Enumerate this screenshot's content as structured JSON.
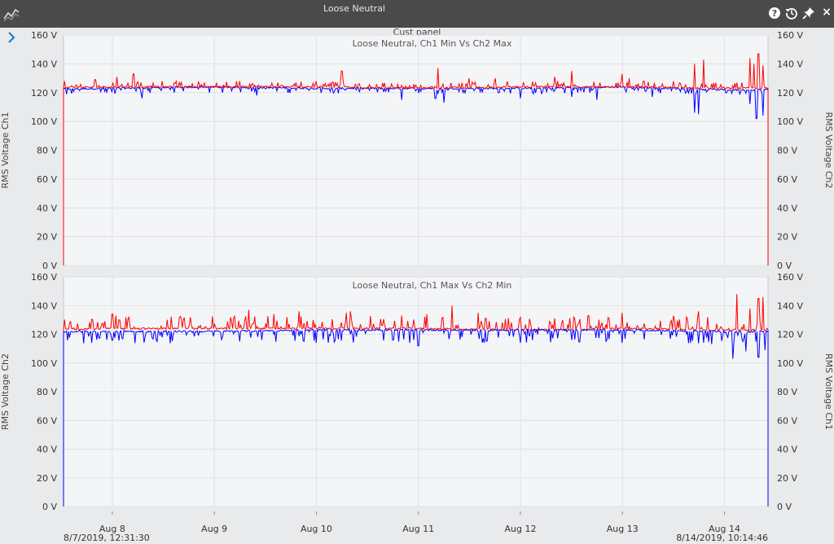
{
  "window": {
    "title": "Loose Neutral"
  },
  "panel": {
    "title": "Cust panel"
  },
  "colors": {
    "ch1": "#0000ff",
    "ch2": "#ff0000",
    "plot_bg": "#f4f5f7",
    "titlebar": "#4a4a4a"
  },
  "toolbar": {
    "icons": [
      "help-icon",
      "history-icon",
      "pin-icon",
      "close-icon"
    ],
    "close_label": "×"
  },
  "time_axis": {
    "start_label": "8/7/2019, 12:31:30",
    "end_label": "8/14/2019, 10:14:46",
    "start": "2019-08-07T12:31:30",
    "end": "2019-08-14T10:14:46",
    "ticks": [
      "Aug 8",
      "Aug 9",
      "Aug 10",
      "Aug 11",
      "Aug 12",
      "Aug 13",
      "Aug 14"
    ]
  },
  "chart_data": [
    {
      "type": "line",
      "title": "Loose Neutral, Ch1 Min Vs Ch2 Max",
      "ylabel_left": "RMS Voltage Ch1",
      "ylabel_right": "RMS Voltage Ch2",
      "ylim": [
        0,
        160
      ],
      "y_ticks": [
        "0 V",
        "20 V",
        "40 V",
        "60 V",
        "80 V",
        "100 V",
        "120 V",
        "140 V",
        "160 V"
      ],
      "grid": true,
      "x": [
        "2019-08-07",
        "2019-08-08",
        "2019-08-09",
        "2019-08-10",
        "2019-08-11",
        "2019-08-12",
        "2019-08-13",
        "2019-08-14"
      ],
      "series": [
        {
          "color": "#0000ff",
          "baseline": [
            122,
            123,
            124,
            123,
            123,
            123,
            124,
            122
          ],
          "dips": [
            [
              "2019-08-08T07:00",
              116
            ],
            [
              "2019-08-09T10:00",
              118
            ],
            [
              "2019-08-10T20:00",
              115
            ],
            [
              "2019-08-11T04:00",
              116
            ],
            [
              "2019-08-11T06:00",
              113
            ],
            [
              "2019-08-12T00:00",
              116
            ],
            [
              "2019-08-12T12:00",
              117
            ],
            [
              "2019-08-12T18:00",
              115
            ],
            [
              "2019-08-13T07:00",
              117
            ],
            [
              "2019-08-13T17:00",
              106
            ],
            [
              "2019-08-13T18:00",
              105
            ],
            [
              "2019-08-14T06:00",
              112
            ],
            [
              "2019-08-14T07:30",
              102
            ],
            [
              "2019-08-14T09:00",
              104
            ]
          ]
        },
        {
          "color": "#ff0000",
          "baseline": [
            123,
            124,
            124,
            124,
            123,
            124,
            124,
            123
          ],
          "peaks": [
            [
              "2019-08-07T12:45",
              128
            ],
            [
              "2019-08-07T20:00",
              129
            ],
            [
              "2019-08-08T01:00",
              131
            ],
            [
              "2019-08-08T05:00",
              133
            ],
            [
              "2019-08-08T15:00",
              128
            ],
            [
              "2019-08-09T06:00",
              128
            ],
            [
              "2019-08-10T00:00",
              128
            ],
            [
              "2019-08-10T06:00",
              135
            ],
            [
              "2019-08-11T04:30",
              137
            ],
            [
              "2019-08-11T12:00",
              130
            ],
            [
              "2019-08-11T18:00",
              130
            ],
            [
              "2019-08-12T08:00",
              131
            ],
            [
              "2019-08-12T12:00",
              135
            ],
            [
              "2019-08-12T23:00",
              127
            ],
            [
              "2019-08-13T00:00",
              133
            ],
            [
              "2019-08-13T01:30",
              130
            ],
            [
              "2019-08-13T05:00",
              128
            ],
            [
              "2019-08-13T12:00",
              128
            ],
            [
              "2019-08-13T17:00",
              140
            ],
            [
              "2019-08-13T19:00",
              143
            ],
            [
              "2019-08-14T03:00",
              127
            ],
            [
              "2019-08-14T06:00",
              144
            ],
            [
              "2019-08-14T07:00",
              140
            ],
            [
              "2019-08-14T08:00",
              147
            ],
            [
              "2019-08-14T09:00",
              139
            ]
          ]
        }
      ]
    },
    {
      "type": "line",
      "title": "Loose Neutral, Ch1 Max Vs Ch2 Min",
      "ylabel_left": "RMS Voltage Ch2",
      "ylabel_right": "RMS Voltage Ch1",
      "ylim": [
        0,
        160
      ],
      "y_ticks": [
        "0 V",
        "20 V",
        "40 V",
        "60 V",
        "80 V",
        "100 V",
        "120 V",
        "140 V",
        "160 V"
      ],
      "grid": true,
      "x": [
        "2019-08-07",
        "2019-08-08",
        "2019-08-09",
        "2019-08-10",
        "2019-08-11",
        "2019-08-12",
        "2019-08-13",
        "2019-08-14"
      ],
      "series": [
        {
          "color": "#ff0000",
          "baseline": [
            123,
            124,
            124,
            124,
            124,
            123,
            124,
            123
          ],
          "peaks": [
            [
              "2019-08-08T00:00",
              134
            ],
            [
              "2019-08-08T04:00",
              132
            ],
            [
              "2019-08-09T08:00",
              137
            ],
            [
              "2019-08-09T14:00",
              134
            ],
            [
              "2019-08-09T20:00",
              136
            ],
            [
              "2019-08-10T07:00",
              135
            ],
            [
              "2019-08-10T08:00",
              136
            ],
            [
              "2019-08-10T20:00",
              133
            ],
            [
              "2019-08-11T02:00",
              134
            ],
            [
              "2019-08-11T08:00",
              140
            ],
            [
              "2019-08-11T14:00",
              135
            ],
            [
              "2019-08-12T10:00",
              130
            ],
            [
              "2019-08-12T16:00",
              133
            ],
            [
              "2019-08-13T00:00",
              135
            ],
            [
              "2019-08-13T12:00",
              133
            ],
            [
              "2019-08-13T18:00",
              136
            ],
            [
              "2019-08-14T03:00",
              148
            ],
            [
              "2019-08-14T06:00",
              138
            ],
            [
              "2019-08-14T08:00",
              145
            ],
            [
              "2019-08-14T09:00",
              146
            ]
          ]
        },
        {
          "color": "#0000ff",
          "baseline": [
            122,
            122,
            122,
            123,
            123,
            123,
            123,
            122
          ],
          "dips": [
            [
              "2019-08-08T00:00",
              116
            ],
            [
              "2019-08-09T06:00",
              115
            ],
            [
              "2019-08-10T00:00",
              114
            ],
            [
              "2019-08-10T18:00",
              116
            ],
            [
              "2019-08-11T00:00",
              112
            ],
            [
              "2019-08-11T16:00",
              115
            ],
            [
              "2019-08-12T00:00",
              114
            ],
            [
              "2019-08-12T12:00",
              116
            ],
            [
              "2019-08-13T00:00",
              114
            ],
            [
              "2019-08-13T16:00",
              114
            ],
            [
              "2019-08-14T02:00",
              103
            ],
            [
              "2019-08-14T05:00",
              108
            ],
            [
              "2019-08-14T08:00",
              104
            ],
            [
              "2019-08-14T09:30",
              109
            ]
          ]
        }
      ]
    }
  ]
}
